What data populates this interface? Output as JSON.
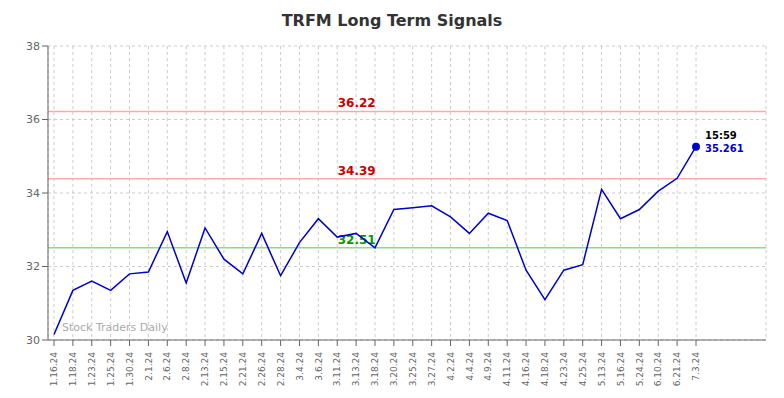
{
  "chart_data": {
    "type": "line",
    "title": "TRFM Long Term Signals",
    "categories": [
      "1.16.24",
      "1.18.24",
      "1.23.24",
      "1.25.24",
      "1.30.24",
      "2.1.24",
      "2.6.24",
      "2.8.24",
      "2.13.24",
      "2.15.24",
      "2.21.24",
      "2.26.24",
      "2.28.24",
      "3.4.24",
      "3.6.24",
      "3.11.24",
      "3.13.24",
      "3.18.24",
      "3.20.24",
      "3.25.24",
      "3.27.24",
      "4.2.24",
      "4.4.24",
      "4.9.24",
      "4.11.24",
      "4.16.24",
      "4.18.24",
      "4.23.24",
      "4.25.24",
      "5.13.24",
      "5.16.24",
      "5.24.24",
      "6.10.24",
      "6.21.24",
      "7.3.24"
    ],
    "values": [
      30.15,
      31.35,
      31.6,
      31.35,
      31.8,
      31.85,
      32.95,
      31.55,
      33.05,
      32.2,
      31.8,
      32.9,
      31.75,
      32.65,
      33.3,
      32.8,
      32.9,
      32.51,
      33.55,
      33.6,
      33.65,
      33.35,
      32.9,
      33.45,
      33.25,
      31.9,
      31.1,
      31.9,
      32.05,
      34.1,
      33.3,
      33.55,
      34.05,
      34.4,
      35.261
    ],
    "color": "#0000cc",
    "ylim": [
      30,
      38
    ],
    "yticks": [
      30,
      32,
      34,
      36,
      38
    ],
    "grid": true,
    "reference_lines": [
      {
        "value": 36.22,
        "label": "36.22",
        "color": "#ffaaaa",
        "label_color": "#cc0000"
      },
      {
        "value": 34.39,
        "label": "34.39",
        "color": "#ffaaaa",
        "label_color": "#cc0000"
      },
      {
        "value": 32.51,
        "label": "32.51",
        "color": "#88dd88",
        "label_color": "#009900"
      }
    ],
    "last_point_labels": [
      {
        "text": "15:59",
        "color": "#000000"
      },
      {
        "text": "35.261",
        "color": "#0000cc"
      }
    ],
    "watermark": {
      "text": "Stock Traders Daily",
      "color": "#aaaaaa"
    }
  }
}
